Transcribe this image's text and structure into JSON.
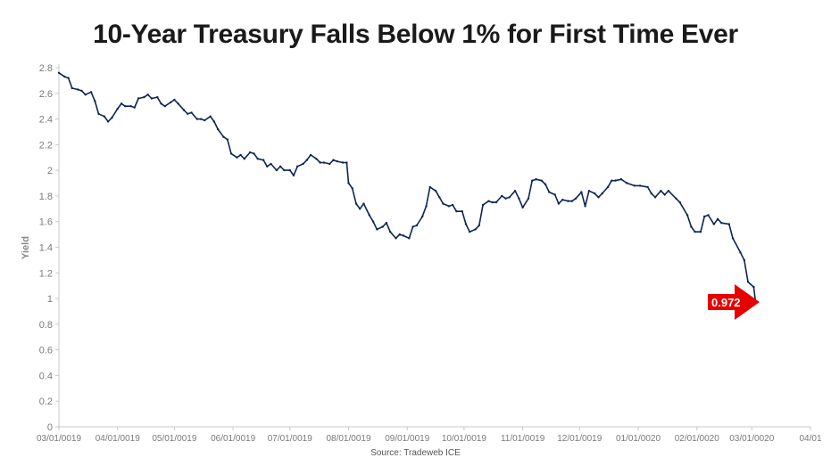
{
  "title": "10-Year Treasury Falls Below 1% for First Time Ever",
  "source": "Source: Tradeweb ICE",
  "colors": {
    "line": "#0d2456",
    "callout": "#e60000",
    "axis": "#c8c8c8"
  },
  "chart_data": {
    "type": "line",
    "title": "10-Year Treasury Falls Below 1% for First Time Ever",
    "xlabel": "",
    "ylabel": "Yield",
    "ylim": [
      0,
      2.8
    ],
    "xlim": [
      "2019-03-01",
      "2020-04-01"
    ],
    "grid": false,
    "yticks": [
      "0",
      "0.2",
      "0.4",
      "0.6",
      "0.8",
      "1",
      "1.2",
      "1.4",
      "1.6",
      "1.8",
      "2",
      "2.2",
      "2.4",
      "2.6",
      "2.8"
    ],
    "xticks": [
      "03/01/0019",
      "04/01/0019",
      "05/01/0019",
      "06/01/0019",
      "07/01/0019",
      "08/01/0019",
      "09/01/0019",
      "10/01/0019",
      "11/01/0019",
      "12/01/0019",
      "01/01/0020",
      "02/01/0020",
      "03/01/0020",
      "04/01"
    ],
    "annotation": {
      "label": "0.972",
      "x": "2020-03-03",
      "y": 0.972
    },
    "series": [
      {
        "x": [
          "2019-03-01",
          "2019-03-04",
          "2019-03-06",
          "2019-03-08",
          "2019-03-11",
          "2019-03-13",
          "2019-03-15",
          "2019-03-18",
          "2019-03-20",
          "2019-03-22",
          "2019-03-25",
          "2019-03-27",
          "2019-03-29",
          "2019-04-01",
          "2019-04-03",
          "2019-04-05",
          "2019-04-08",
          "2019-04-10",
          "2019-04-12",
          "2019-04-15",
          "2019-04-17",
          "2019-04-19",
          "2019-04-22",
          "2019-04-24",
          "2019-04-26",
          "2019-04-29",
          "2019-05-01",
          "2019-05-03",
          "2019-05-06",
          "2019-05-08",
          "2019-05-10",
          "2019-05-13",
          "2019-05-15",
          "2019-05-17",
          "2019-05-20",
          "2019-05-22",
          "2019-05-24",
          "2019-05-27",
          "2019-05-29",
          "2019-05-31",
          "2019-06-03",
          "2019-06-05",
          "2019-06-07",
          "2019-06-10",
          "2019-06-12",
          "2019-06-14",
          "2019-06-17",
          "2019-06-19",
          "2019-06-21",
          "2019-06-24",
          "2019-06-26",
          "2019-06-28",
          "2019-07-01",
          "2019-07-03",
          "2019-07-05",
          "2019-07-08",
          "2019-07-10",
          "2019-07-12",
          "2019-07-15",
          "2019-07-17",
          "2019-07-19",
          "2019-07-22",
          "2019-07-24",
          "2019-07-26",
          "2019-07-29",
          "2019-07-31",
          "2019-08-01",
          "2019-08-03",
          "2019-08-05",
          "2019-08-07",
          "2019-08-09",
          "2019-08-12",
          "2019-08-14",
          "2019-08-16",
          "2019-08-19",
          "2019-08-21",
          "2019-08-23",
          "2019-08-26",
          "2019-08-28",
          "2019-08-30",
          "2019-09-02",
          "2019-09-04",
          "2019-09-06",
          "2019-09-09",
          "2019-09-11",
          "2019-09-13",
          "2019-09-16",
          "2019-09-18",
          "2019-09-20",
          "2019-09-23",
          "2019-09-25",
          "2019-09-27",
          "2019-09-30",
          "2019-10-02",
          "2019-10-04",
          "2019-10-07",
          "2019-10-09",
          "2019-10-11",
          "2019-10-14",
          "2019-10-16",
          "2019-10-18",
          "2019-10-21",
          "2019-10-23",
          "2019-10-25",
          "2019-10-28",
          "2019-10-30",
          "2019-11-01",
          "2019-11-04",
          "2019-11-06",
          "2019-11-08",
          "2019-11-11",
          "2019-11-13",
          "2019-11-15",
          "2019-11-18",
          "2019-11-20",
          "2019-11-22",
          "2019-11-25",
          "2019-11-27",
          "2019-11-29",
          "2019-12-02",
          "2019-12-04",
          "2019-12-06",
          "2019-12-09",
          "2019-12-11",
          "2019-12-13",
          "2019-12-16",
          "2019-12-18",
          "2019-12-20",
          "2019-12-23",
          "2019-12-26",
          "2019-12-30",
          "2020-01-02",
          "2020-01-06",
          "2020-01-08",
          "2020-01-10",
          "2020-01-13",
          "2020-01-15",
          "2020-01-17",
          "2020-01-21",
          "2020-01-23",
          "2020-01-27",
          "2020-01-29",
          "2020-01-31",
          "2020-02-03",
          "2020-02-05",
          "2020-02-07",
          "2020-02-10",
          "2020-02-12",
          "2020-02-14",
          "2020-02-18",
          "2020-02-20",
          "2020-02-24",
          "2020-02-26",
          "2020-02-28",
          "2020-03-02",
          "2020-03-03"
        ],
        "values": [
          2.76,
          2.73,
          2.72,
          2.64,
          2.63,
          2.62,
          2.59,
          2.61,
          2.54,
          2.44,
          2.42,
          2.38,
          2.41,
          2.48,
          2.52,
          2.5,
          2.5,
          2.49,
          2.56,
          2.57,
          2.59,
          2.56,
          2.57,
          2.52,
          2.5,
          2.53,
          2.55,
          2.52,
          2.47,
          2.44,
          2.45,
          2.4,
          2.4,
          2.39,
          2.42,
          2.38,
          2.32,
          2.26,
          2.24,
          2.13,
          2.1,
          2.12,
          2.09,
          2.14,
          2.13,
          2.09,
          2.08,
          2.03,
          2.05,
          2.0,
          2.03,
          2.0,
          2.0,
          1.96,
          2.03,
          2.05,
          2.08,
          2.12,
          2.09,
          2.06,
          2.06,
          2.05,
          2.08,
          2.07,
          2.06,
          2.06,
          1.9,
          1.86,
          1.74,
          1.7,
          1.74,
          1.65,
          1.6,
          1.54,
          1.56,
          1.59,
          1.52,
          1.47,
          1.5,
          1.49,
          1.47,
          1.56,
          1.57,
          1.64,
          1.72,
          1.87,
          1.84,
          1.79,
          1.74,
          1.72,
          1.73,
          1.68,
          1.68,
          1.58,
          1.52,
          1.54,
          1.57,
          1.73,
          1.76,
          1.75,
          1.75,
          1.8,
          1.78,
          1.79,
          1.84,
          1.78,
          1.71,
          1.78,
          1.92,
          1.93,
          1.92,
          1.89,
          1.83,
          1.81,
          1.74,
          1.77,
          1.76,
          1.76,
          1.78,
          1.83,
          1.72,
          1.84,
          1.82,
          1.79,
          1.82,
          1.87,
          1.92,
          1.92,
          1.93,
          1.9,
          1.88,
          1.88,
          1.87,
          1.82,
          1.79,
          1.84,
          1.81,
          1.84,
          1.78,
          1.75,
          1.65,
          1.56,
          1.52,
          1.52,
          1.64,
          1.65,
          1.58,
          1.62,
          1.59,
          1.58,
          1.47,
          1.36,
          1.3,
          1.13,
          1.09,
          0.972
        ]
      }
    ]
  }
}
